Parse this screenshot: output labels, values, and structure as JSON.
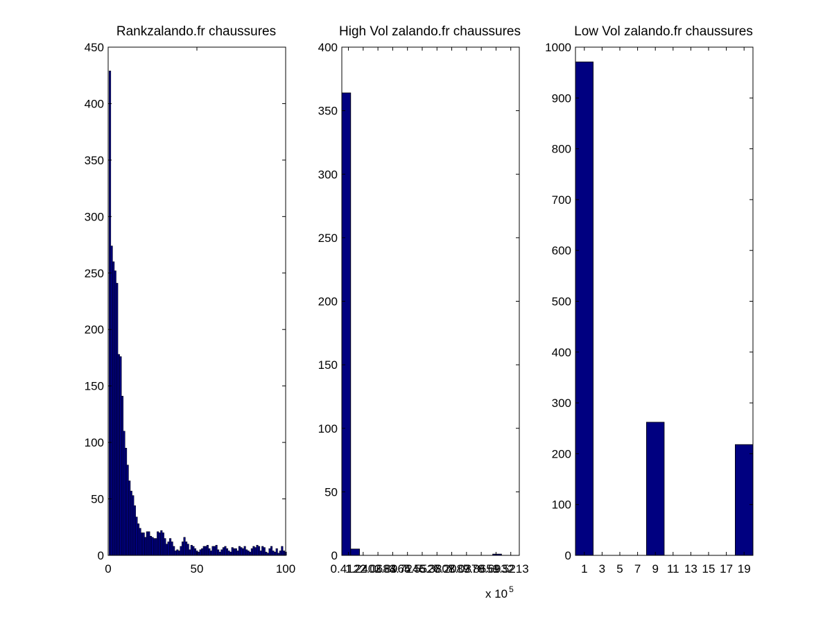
{
  "chart_data": [
    {
      "type": "bar",
      "title": "Rankzalando.fr chaussures",
      "xlim": [
        0,
        100
      ],
      "ylim": [
        0,
        450
      ],
      "xticks": [
        0,
        50,
        100
      ],
      "xtick_labels": [
        "0",
        "50",
        "100"
      ],
      "yticks": [
        0,
        50,
        100,
        150,
        200,
        250,
        300,
        350,
        400,
        450
      ],
      "ytick_labels": [
        "0",
        "50",
        "100",
        "150",
        "200",
        "250",
        "300",
        "350",
        "400",
        "450"
      ],
      "bar_color": "#000080",
      "x": [
        1,
        2,
        3,
        4,
        5,
        6,
        7,
        8,
        9,
        10,
        11,
        12,
        13,
        14,
        15,
        16,
        17,
        18,
        19,
        20,
        21,
        22,
        23,
        24,
        25,
        26,
        27,
        28,
        29,
        30,
        31,
        32,
        33,
        34,
        35,
        36,
        37,
        38,
        39,
        40,
        41,
        42,
        43,
        44,
        45,
        46,
        47,
        48,
        49,
        50,
        51,
        52,
        53,
        54,
        55,
        56,
        57,
        58,
        59,
        60,
        61,
        62,
        63,
        64,
        65,
        66,
        67,
        68,
        69,
        70,
        71,
        72,
        73,
        74,
        75,
        76,
        77,
        78,
        79,
        80,
        81,
        82,
        83,
        84,
        85,
        86,
        87,
        88,
        89,
        90,
        91,
        92,
        93,
        94,
        95,
        96,
        97,
        98,
        99,
        100
      ],
      "values": [
        429,
        274,
        260,
        252,
        241,
        178,
        176,
        141,
        110,
        95,
        80,
        66,
        57,
        53,
        44,
        34,
        28,
        24,
        20,
        20,
        16,
        21,
        21,
        17,
        16,
        15,
        15,
        21,
        20,
        22,
        20,
        15,
        10,
        12,
        15,
        12,
        8,
        4,
        5,
        4,
        8,
        12,
        16,
        12,
        10,
        5,
        9,
        8,
        6,
        4,
        3,
        5,
        6,
        8,
        8,
        9,
        6,
        4,
        8,
        8,
        9,
        5,
        3,
        5,
        7,
        8,
        6,
        4,
        3,
        7,
        6,
        6,
        4,
        8,
        7,
        6,
        8,
        5,
        4,
        3,
        6,
        8,
        7,
        9,
        8,
        4,
        8,
        7,
        3,
        2,
        6,
        8,
        4,
        3,
        6,
        2,
        4,
        8,
        4,
        3
      ]
    },
    {
      "type": "bar",
      "title": "High Vol zalando.fr chaussures",
      "xlim": [
        0.0412,
        10
      ],
      "ylim": [
        0,
        400
      ],
      "xtick_labels": [
        "0.4122",
        "1.2403",
        "2.0684",
        "2.8965",
        "3.7246",
        "4.5527",
        "5.3808",
        "6.2089",
        "7.0370",
        "7.8651",
        "8.6932",
        "9.5213"
      ],
      "x_multiplier": "x 10",
      "x_multiplier_exp": "5",
      "yticks": [
        0,
        50,
        100,
        150,
        200,
        250,
        300,
        350,
        400
      ],
      "ytick_labels": [
        "0",
        "50",
        "100",
        "150",
        "200",
        "250",
        "300",
        "350",
        "400"
      ],
      "bar_color": "#000080",
      "values": [
        364,
        5,
        0,
        0,
        0,
        0,
        0,
        0,
        0,
        0,
        0,
        0,
        0,
        0,
        0,
        0,
        0,
        1,
        0,
        0
      ]
    },
    {
      "type": "bar",
      "title": "Low Vol zalando.fr chaussures",
      "xlim": [
        0,
        20
      ],
      "ylim": [
        0,
        1000
      ],
      "xticks": [
        1,
        3,
        5,
        7,
        9,
        11,
        13,
        15,
        17,
        19
      ],
      "xtick_labels": [
        "1",
        "3",
        "5",
        "7",
        "9",
        "11",
        "13",
        "15",
        "17",
        "19"
      ],
      "yticks": [
        0,
        100,
        200,
        300,
        400,
        500,
        600,
        700,
        800,
        900,
        1000
      ],
      "ytick_labels": [
        "0",
        "100",
        "200",
        "300",
        "400",
        "500",
        "600",
        "700",
        "800",
        "900",
        "1000"
      ],
      "bar_color": "#000080",
      "x": [
        1,
        9,
        19
      ],
      "values": [
        971,
        262,
        218
      ]
    }
  ]
}
